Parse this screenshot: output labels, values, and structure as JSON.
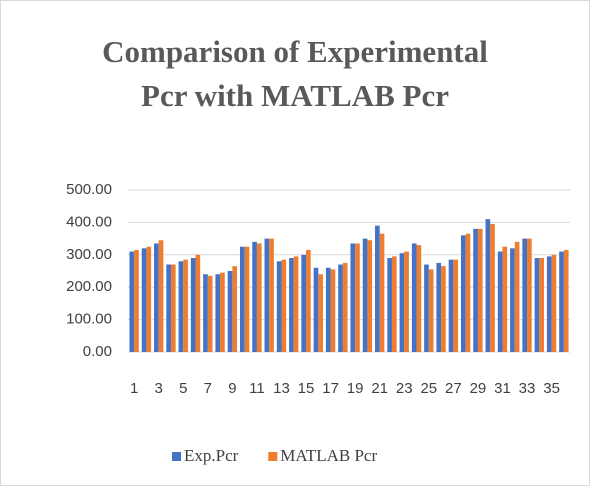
{
  "chart_data": {
    "type": "bar",
    "title": "Comparison of Experimental Pcr with MATLAB Pcr",
    "categories": [
      "1",
      null,
      "3",
      null,
      "5",
      null,
      "7",
      null,
      "9",
      null,
      "11",
      null,
      "13",
      null,
      "15",
      null,
      "17",
      null,
      "19",
      null,
      "21",
      null,
      "23",
      null,
      "25",
      null,
      "27",
      null,
      "29",
      null,
      "31",
      null,
      "33",
      null,
      "35",
      null
    ],
    "series": [
      {
        "name": "Exp.Pcr",
        "color": "#4472c4",
        "values": [
          310,
          320,
          335,
          270,
          280,
          290,
          240,
          240,
          250,
          325,
          340,
          350,
          280,
          290,
          300,
          260,
          260,
          270,
          335,
          350,
          390,
          290,
          305,
          335,
          270,
          275,
          285,
          360,
          380,
          410,
          310,
          320,
          350,
          290,
          295,
          310
        ]
      },
      {
        "name": "MATLAB Pcr",
        "color": "#ed7d31",
        "values": [
          315,
          325,
          345,
          270,
          285,
          300,
          235,
          245,
          265,
          325,
          335,
          350,
          285,
          295,
          315,
          240,
          255,
          275,
          335,
          345,
          365,
          295,
          310,
          330,
          255,
          265,
          285,
          365,
          380,
          395,
          325,
          340,
          350,
          290,
          300,
          315
        ]
      }
    ],
    "ylim": [
      0,
      500
    ],
    "yticks": [
      {
        "value": 0,
        "label": "0.00"
      },
      {
        "value": 100,
        "label": "100.00"
      },
      {
        "value": 200,
        "label": "200.00"
      },
      {
        "value": 300,
        "label": "300.00"
      },
      {
        "value": 400,
        "label": "400.00"
      },
      {
        "value": 500,
        "label": "500.00"
      }
    ],
    "grid": true,
    "legend": "bottom"
  }
}
